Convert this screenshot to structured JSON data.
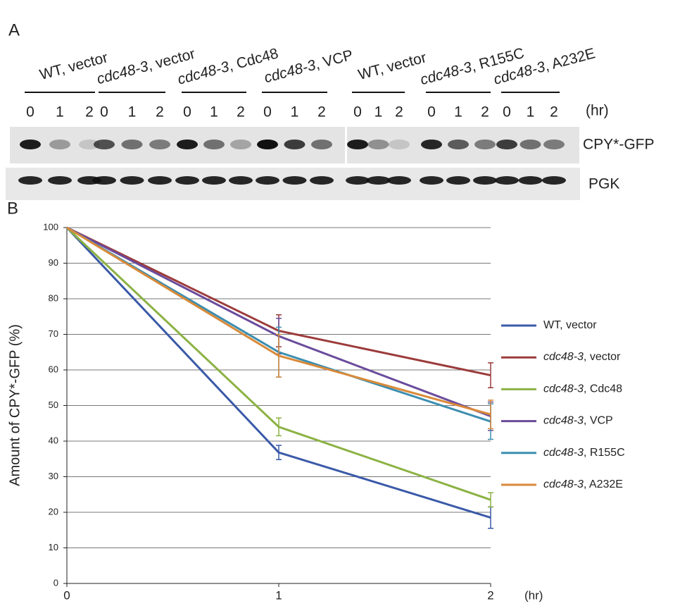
{
  "panel_a": {
    "label": "A",
    "groups": [
      {
        "name": "WT, vector",
        "lanes": [
          "0",
          "1",
          "2"
        ]
      },
      {
        "name": "cdc48-3, vector",
        "lanes": [
          "0",
          "1",
          "2"
        ]
      },
      {
        "name": "cdc48-3, Cdc48",
        "lanes": [
          "0",
          "1",
          "2"
        ]
      },
      {
        "name": "cdc48-3, VCP",
        "lanes": [
          "0",
          "1",
          "2"
        ]
      },
      {
        "name": "WT, vector",
        "lanes": [
          "0",
          "1",
          "2"
        ]
      },
      {
        "name": "cdc48-3, R155C",
        "lanes": [
          "0",
          "1",
          "2"
        ]
      },
      {
        "name": "cdc48-3, A232E",
        "lanes": [
          "0",
          "1",
          "2"
        ]
      }
    ],
    "time_unit": "(hr)",
    "rows": [
      "CPY*-GFP",
      "PGK"
    ]
  },
  "chart_data": {
    "type": "line",
    "panel_label": "B",
    "y_label": "Amount of CPY*-GFP (%)",
    "x_unit_label": "(hr)",
    "x": [
      0,
      1,
      2
    ],
    "xlim": [
      0,
      2
    ],
    "xticks": [
      0,
      1,
      2
    ],
    "ylim": [
      0,
      100
    ],
    "yticks": [
      0,
      10,
      20,
      30,
      40,
      50,
      60,
      70,
      80,
      90,
      100
    ],
    "grid": true,
    "series": [
      {
        "name": "WT, vector",
        "color": "#3a5aa8",
        "values": [
          100,
          36.8,
          18.5
        ],
        "errors": [
          null,
          2,
          3
        ]
      },
      {
        "name": "cdc48-3, vector",
        "color": "#9c3b3b",
        "values": [
          100,
          71,
          58.5
        ],
        "errors": [
          null,
          4.5,
          3.5
        ]
      },
      {
        "name": "cdc48-3, Cdc48",
        "color": "#8cb244",
        "values": [
          100,
          44,
          23.5
        ],
        "errors": [
          null,
          2.5,
          2
        ]
      },
      {
        "name": "cdc48-3, VCP",
        "color": "#6a4b9c",
        "values": [
          100,
          69.5,
          47
        ],
        "errors": [
          null,
          5,
          4
        ]
      },
      {
        "name": "cdc48-3, R155C",
        "color": "#3c8eb0",
        "values": [
          100,
          65,
          45.5
        ],
        "errors": [
          null,
          7,
          5
        ]
      },
      {
        "name": "cdc48-3, A232E",
        "color": "#d98a3a",
        "values": [
          100,
          64,
          47.5
        ],
        "errors": [
          null,
          6,
          4
        ]
      }
    ]
  }
}
